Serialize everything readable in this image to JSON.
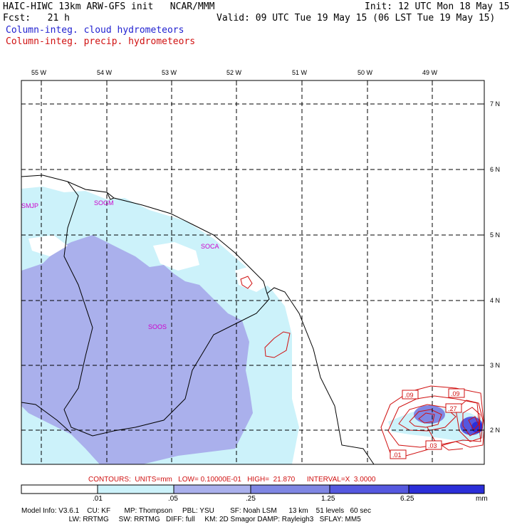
{
  "header": {
    "title_left": "HAIC-HIWC 13km ARW-GFS init   NCAR/MMM",
    "init": "Init: 12 UTC Mon 18 May 15",
    "fcst": "Fcst:   21 h",
    "valid": "Valid: 09 UTC Tue 19 May 15 (06 LST Tue 19 May 15)",
    "legend_cloud": "Column-integ. cloud hydrometeors",
    "legend_precip": "Column-integ. precip. hydrometeors"
  },
  "map": {
    "lon_labels": [
      "55 W",
      "54 W",
      "53 W",
      "52 W",
      "51 W",
      "50 W",
      "49 W"
    ],
    "lat_labels": [
      "7 N",
      "6 N",
      "5 N",
      "4 N",
      "3 N",
      "2 N"
    ],
    "stations": [
      "SMJP",
      "SOGM",
      "SOCA",
      "SOOS"
    ],
    "contour_labels": [
      ".09",
      ".09",
      ".27",
      ".01",
      ".03"
    ]
  },
  "contours_info": "CONTOURS:  UNITS=mm   LOW= 0.10000E-01   HIGH=  21.870      INTERVAL=X  3.0000",
  "colorbar": {
    "ticks": [
      ".01",
      ".05",
      ".25",
      "1.25",
      "6.25",
      "mm"
    ],
    "colors": [
      "#ffffff",
      "#ccf2fa",
      "#aab0ec",
      "#7f86e3",
      "#5558df",
      "#2b2ed8",
      "#1010e0"
    ]
  },
  "footer": {
    "line1": "Model Info: V3.6.1    CU: KF       MP: Thompson     PBL: YSU        SF: Noah LSM      13 km    51 levels   60 sec",
    "line2": "                        LW: RRTMG     SW: RRTMG   DIFF: full     KM: 2D Smagor DAMP: Rayleigh3   SFLAY: MM5"
  }
}
